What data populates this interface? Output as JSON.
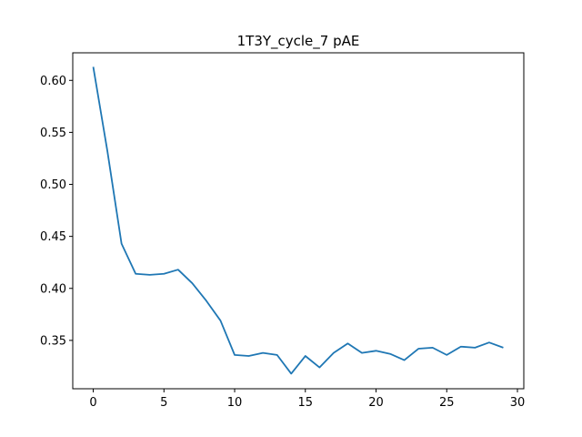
{
  "chart_data": {
    "type": "line",
    "title": "1T3Y_cycle_7 pAE",
    "xlabel": "",
    "ylabel": "",
    "xlim": [
      -1.45,
      30.45
    ],
    "ylim": [
      0.3035,
      0.6265
    ],
    "grid": false,
    "x_ticks": [
      0,
      5,
      10,
      15,
      20,
      25,
      30
    ],
    "y_ticks": [
      0.35,
      0.4,
      0.45,
      0.5,
      0.55,
      0.6
    ],
    "x_tick_labels": [
      "0",
      "5",
      "10",
      "15",
      "20",
      "25",
      "30"
    ],
    "y_tick_labels": [
      "0.35",
      "0.40",
      "0.45",
      "0.50",
      "0.55",
      "0.60"
    ],
    "line_color": "#1f77b4",
    "series": [
      {
        "x": [
          0,
          1,
          2,
          3,
          4,
          5,
          6,
          7,
          8,
          9,
          10,
          11,
          12,
          13,
          14,
          15,
          16,
          17,
          18,
          19,
          20,
          21,
          22,
          23,
          24,
          25,
          26,
          27,
          28,
          29
        ],
        "values": [
          0.613,
          0.532,
          0.443,
          0.414,
          0.413,
          0.414,
          0.418,
          0.405,
          0.388,
          0.369,
          0.336,
          0.335,
          0.338,
          0.336,
          0.318,
          0.335,
          0.324,
          0.338,
          0.347,
          0.338,
          0.34,
          0.337,
          0.331,
          0.342,
          0.343,
          0.336,
          0.344,
          0.343,
          0.348,
          0.343
        ]
      }
    ]
  }
}
